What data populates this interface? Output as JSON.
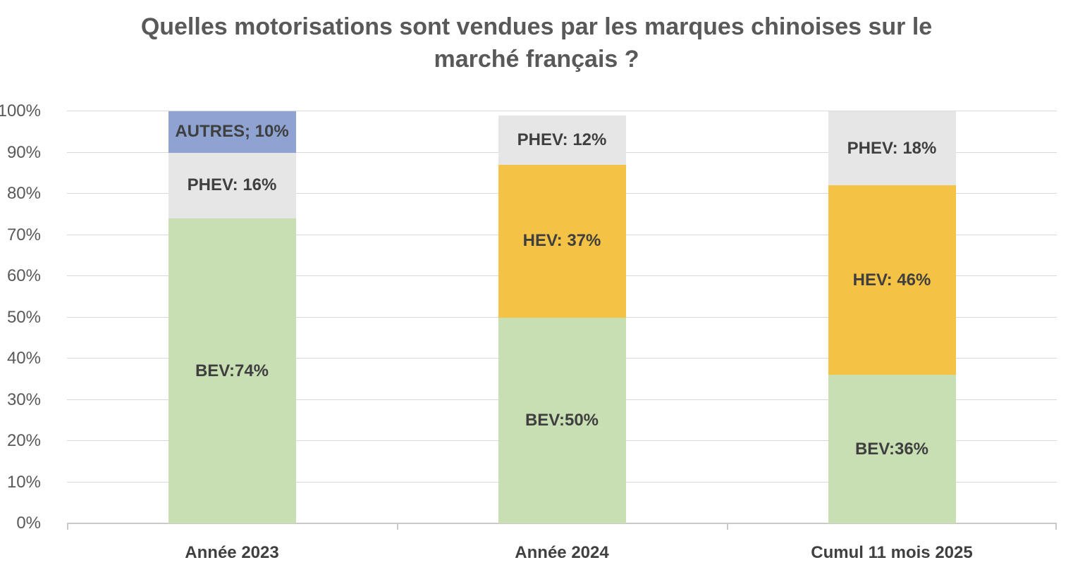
{
  "title": "Quelles motorisations sont vendues par les marques chinoises sur le marché français ?",
  "colors": {
    "bev_green": "#C8DFB3",
    "hev_orange": "#F4C244",
    "phev_gray": "#E7E6E6",
    "autres_blue": "#8EA3D2",
    "gridline": "#D9D9D9",
    "axis_line": "#C9C9C9",
    "title_text": "#595959",
    "tick_text": "#595959",
    "label_text": "#3F3F3F"
  },
  "chart_data": {
    "type": "bar",
    "stacked": true,
    "unit": "%",
    "title": "Quelles motorisations sont vendues par les marques chinoises sur le marché français ?",
    "categories": [
      "Année 2023",
      "Année 2024",
      "Cumul 11 mois 2025"
    ],
    "series": [
      {
        "name": "BEV",
        "color": "#C8DFB3",
        "values": [
          74,
          50,
          36
        ],
        "labels": [
          "BEV:74%",
          "BEV:50%",
          "BEV:36%"
        ]
      },
      {
        "name": "HEV",
        "color": "#F4C244",
        "values": [
          0,
          37,
          46
        ],
        "labels": [
          "",
          "HEV: 37%",
          "HEV: 46%"
        ]
      },
      {
        "name": "PHEV",
        "color": "#E7E6E6",
        "values": [
          16,
          12,
          18
        ],
        "labels": [
          "PHEV: 16%",
          "PHEV: 12%",
          "PHEV: 18%"
        ]
      },
      {
        "name": "AUTRES",
        "color": "#8EA3D2",
        "values": [
          10,
          0,
          0
        ],
        "labels": [
          "AUTRES; 10%",
          "",
          ""
        ]
      }
    ],
    "xlabel": "",
    "ylabel": "",
    "ylim": [
      0,
      100
    ],
    "yticks": [
      "0%",
      "10%",
      "20%",
      "30%",
      "40%",
      "50%",
      "60%",
      "70%",
      "80%",
      "90%",
      "100%"
    ],
    "grid": true,
    "legend": false,
    "data_labels": "inside-center"
  }
}
